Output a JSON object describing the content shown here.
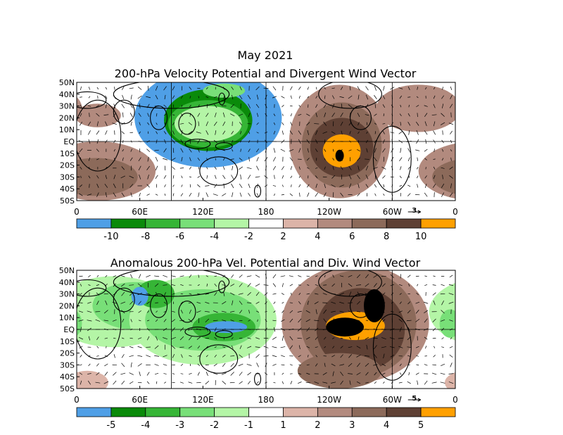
{
  "chart_data": [
    {
      "type": "heatmap",
      "title_line1": "May 2021",
      "title_line2": "200-hPa Velocity Potential and Divergent Wind Vector",
      "x_ticks": [
        "0",
        "60E",
        "120E",
        "180",
        "120W",
        "60W",
        "0"
      ],
      "y_ticks": [
        "50N",
        "40N",
        "30N",
        "20N",
        "10N",
        "EQ",
        "10S",
        "20S",
        "30S",
        "40S",
        "50S"
      ],
      "vector_ref_label": "3",
      "colorbar_labels": [
        "-10",
        "-8",
        "-6",
        "-4",
        "-2",
        "2",
        "4",
        "6",
        "8",
        "10"
      ],
      "colorbar_colors": [
        "#4f9fe6",
        "#0a8a0a",
        "#36b536",
        "#78df78",
        "#b4f5a6",
        "#ffffff",
        "#dcb4a8",
        "#b28a7e",
        "#8c6a5a",
        "#5e4034",
        "#ffa000"
      ],
      "regions": [
        {
          "lon": 125,
          "lat": 20,
          "rlon": 70,
          "rlat": 42,
          "level": 0
        },
        {
          "lon": 125,
          "lat": 18,
          "rlon": 42,
          "rlat": 26,
          "level": 1
        },
        {
          "lon": 125,
          "lat": 15,
          "rlon": 38,
          "rlat": 20,
          "level": 2
        },
        {
          "lon": 140,
          "lat": 43,
          "rlon": 20,
          "rlat": 6,
          "level": 3
        },
        {
          "lon": 125,
          "lat": 15,
          "rlon": 32,
          "rlat": 15,
          "level": 4
        },
        {
          "lon": 20,
          "lat": -25,
          "rlon": 55,
          "rlat": 25,
          "level": 7
        },
        {
          "lon": 18,
          "lat": -30,
          "rlon": 40,
          "rlat": 16,
          "level": 8
        },
        {
          "lon": 20,
          "lat": 22,
          "rlon": 22,
          "rlat": 10,
          "level": 7
        },
        {
          "lon": 325,
          "lat": 28,
          "rlon": 40,
          "rlat": 20,
          "level": 7
        },
        {
          "lon": 250,
          "lat": 0,
          "rlon": 48,
          "rlat": 48,
          "level": 7
        },
        {
          "lon": 252,
          "lat": -3,
          "rlon": 38,
          "rlat": 36,
          "level": 8
        },
        {
          "lon": 252,
          "lat": -5,
          "rlon": 30,
          "rlat": 25,
          "level": 9
        },
        {
          "lon": 252,
          "lat": -8,
          "rlon": 18,
          "rlat": 14,
          "level": 10
        },
        {
          "lon": 250,
          "lat": -12,
          "rlon": 4,
          "rlat": 5,
          "level": 11
        }
      ]
    },
    {
      "type": "heatmap",
      "title": "Anomalous 200-hPa Vel. Potential and Div. Wind Vector",
      "x_ticks": [
        "0",
        "60E",
        "120E",
        "180",
        "120W",
        "60W",
        "0"
      ],
      "y_ticks": [
        "50N",
        "40N",
        "30N",
        "20N",
        "10N",
        "EQ",
        "10S",
        "20S",
        "30S",
        "40S",
        "50S"
      ],
      "vector_ref_label": "5",
      "colorbar_labels": [
        "-5",
        "-4",
        "-3",
        "-2",
        "-1",
        "1",
        "2",
        "3",
        "4",
        "5"
      ],
      "colorbar_colors": [
        "#4f9fe6",
        "#0a8a0a",
        "#36b536",
        "#78df78",
        "#b4f5a6",
        "#ffffff",
        "#dcb4a8",
        "#b28a7e",
        "#8c6a5a",
        "#5e4034",
        "#ffa000"
      ],
      "regions": [
        {
          "lon": 35,
          "lat": 15,
          "rlon": 60,
          "rlat": 30,
          "level": 4
        },
        {
          "lon": 55,
          "lat": 20,
          "rlon": 40,
          "rlat": 20,
          "level": 3
        },
        {
          "lon": 120,
          "lat": 8,
          "rlon": 70,
          "rlat": 38,
          "level": 4
        },
        {
          "lon": 120,
          "lat": 8,
          "rlon": 55,
          "rlat": 26,
          "level": 3
        },
        {
          "lon": 75,
          "lat": 30,
          "rlon": 18,
          "rlat": 12,
          "level": 2
        },
        {
          "lon": 140,
          "lat": 2,
          "rlon": 30,
          "rlat": 12,
          "level": 2
        },
        {
          "lon": 60,
          "lat": 28,
          "rlon": 8,
          "rlat": 8,
          "level": 0
        },
        {
          "lon": 142,
          "lat": 2,
          "rlon": 20,
          "rlat": 5,
          "level": 0
        },
        {
          "lon": 355,
          "lat": 5,
          "rlon": 10,
          "rlat": 12,
          "level": 3
        },
        {
          "lon": 265,
          "lat": 5,
          "rlon": 70,
          "rlat": 50,
          "level": 7
        },
        {
          "lon": 268,
          "lat": 5,
          "rlon": 55,
          "rlat": 45,
          "level": 8
        },
        {
          "lon": 270,
          "lat": 0,
          "rlon": 42,
          "rlat": 35,
          "level": 9
        },
        {
          "lon": 265,
          "lat": 3,
          "rlon": 28,
          "rlat": 12,
          "level": 10
        },
        {
          "lon": 255,
          "lat": 2,
          "rlon": 18,
          "rlat": 8,
          "level": 11
        },
        {
          "lon": 283,
          "lat": 20,
          "rlon": 10,
          "rlat": 14,
          "level": 11
        },
        {
          "lon": 10,
          "lat": -45,
          "rlon": 20,
          "rlat": 10,
          "level": 6
        },
        {
          "lon": 250,
          "lat": -35,
          "rlon": 40,
          "rlat": 15,
          "level": 8
        }
      ]
    }
  ]
}
